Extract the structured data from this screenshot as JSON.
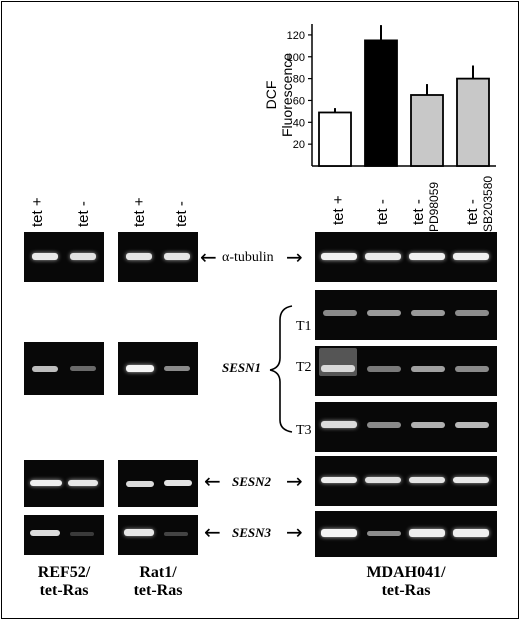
{
  "chart_data": {
    "type": "bar",
    "categories": [
      "tet +",
      "tet -",
      "tet - PD98059",
      "tet - SB203580"
    ],
    "values": [
      49,
      115,
      65,
      80
    ],
    "errors": [
      4,
      14,
      10,
      12
    ],
    "bar_colors": [
      "#ffffff",
      "#000000",
      "#c8c8c8",
      "#c8c8c8"
    ],
    "ylabel_lines": [
      "DCF",
      "Fluorescence"
    ],
    "yticks": [
      20,
      40,
      60,
      80,
      100,
      120
    ],
    "ylim": [
      0,
      130
    ]
  },
  "lanes": {
    "ref52": [
      "tet +",
      "tet -"
    ],
    "rat1": [
      "tet +",
      "tet -"
    ],
    "mdah": [
      "tet +",
      "tet -",
      "tet -",
      "tet -"
    ],
    "mdah_sub": [
      "PD98059",
      "SB203580"
    ]
  },
  "labels": {
    "tubulin": "α-tubulin",
    "sesn1": "SESN1",
    "sesn2": "SESN2",
    "sesn3": "SESN3",
    "t1": "T1",
    "t2": "T2",
    "t3": "T3"
  },
  "cells": {
    "ref52_line1": "REF52/",
    "ref52_line2": "tet-Ras",
    "rat1_line1": "Rat1/",
    "rat1_line2": "tet-Ras",
    "mdah_line1": "MDAH041/",
    "mdah_line2": "tet-Ras"
  },
  "arrows": {
    "left": "←",
    "right": "→"
  }
}
